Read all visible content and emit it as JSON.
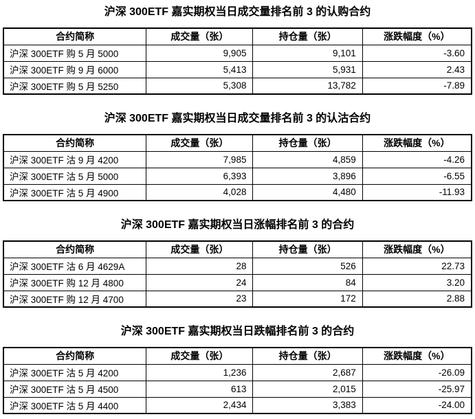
{
  "sections": [
    {
      "title": "沪深 300ETF 嘉实期权当日成交量排名前 3 的认购合约",
      "columns": [
        "合约简称",
        "成交量（张）",
        "持仓量（张）",
        "涨跌幅度（%）"
      ],
      "rows": [
        [
          "沪深 300ETF 购 5 月 5000",
          "9,905",
          "9,101",
          "-3.60"
        ],
        [
          "沪深 300ETF 购 9 月 6000",
          "5,413",
          "5,931",
          "2.43"
        ],
        [
          "沪深 300ETF 购 5 月 5250",
          "5,308",
          "13,782",
          "-7.89"
        ]
      ]
    },
    {
      "title": "沪深 300ETF 嘉实期权当日成交量排名前 3 的认沽合约",
      "columns": [
        "合约简称",
        "成交量（张）",
        "持仓量（张）",
        "涨跌幅度（%）"
      ],
      "rows": [
        [
          "沪深 300ETF 沽 9 月 4200",
          "7,985",
          "4,859",
          "-4.26"
        ],
        [
          "沪深 300ETF 沽 5 月 5000",
          "6,393",
          "3,896",
          "-6.55"
        ],
        [
          "沪深 300ETF 沽 5 月 4900",
          "4,028",
          "4,480",
          "-11.93"
        ]
      ]
    },
    {
      "title": "沪深 300ETF 嘉实期权当日涨幅排名前 3 的合约",
      "columns": [
        "合约简称",
        "成交量（张）",
        "持仓量（张）",
        "涨跌幅度（%）"
      ],
      "rows": [
        [
          "沪深 300ETF 沽 6 月 4629A",
          "28",
          "526",
          "22.73"
        ],
        [
          "沪深 300ETF 购 12 月 4800",
          "24",
          "84",
          "3.20"
        ],
        [
          "沪深 300ETF 购 12 月 4700",
          "23",
          "172",
          "2.88"
        ]
      ]
    },
    {
      "title": "沪深 300ETF 嘉实期权当日跌幅排名前 3 的合约",
      "columns": [
        "合约简称",
        "成交量（张）",
        "持仓量（张）",
        "涨跌幅度（%）"
      ],
      "rows": [
        [
          "沪深 300ETF 沽 5 月 4200",
          "1,236",
          "2,687",
          "-26.09"
        ],
        [
          "沪深 300ETF 沽 5 月 4500",
          "613",
          "2,015",
          "-25.97"
        ],
        [
          "沪深 300ETF 沽 5 月 4400",
          "2,434",
          "3,383",
          "-24.00"
        ]
      ]
    }
  ]
}
